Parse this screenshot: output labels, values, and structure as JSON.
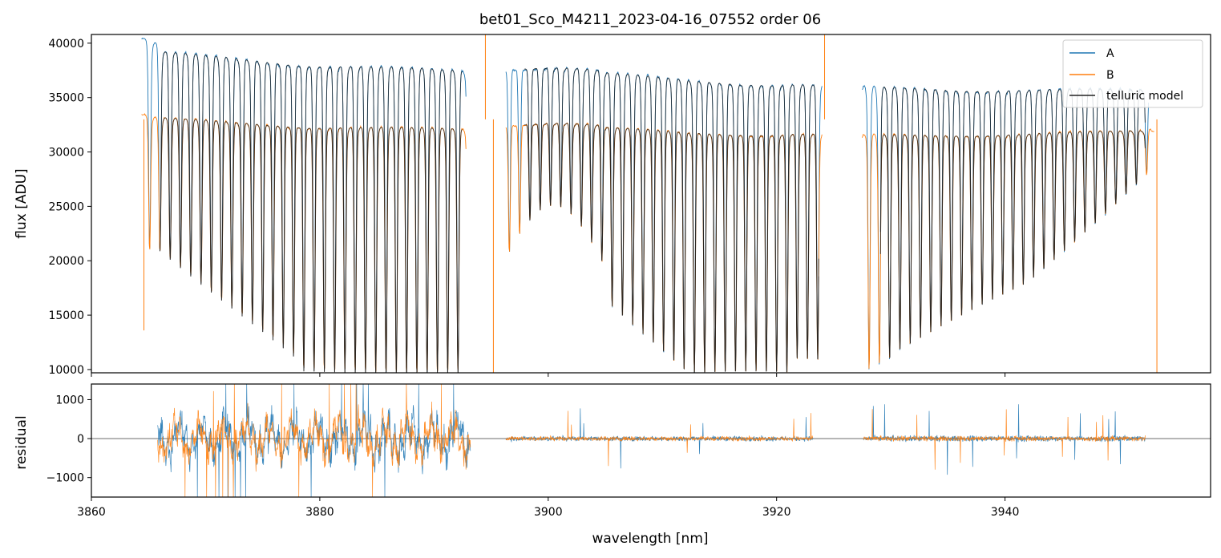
{
  "chart_data": [
    {
      "type": "line",
      "title": "bet01_Sco_M4211_2023-04-16_07552  order 06",
      "xlabel": "",
      "ylabel": "flux [ADU]",
      "xlim": [
        3860,
        3958
      ],
      "ylim": [
        9700,
        40800
      ],
      "yticks": [
        10000,
        15000,
        20000,
        25000,
        30000,
        35000,
        40000
      ],
      "ytick_labels": [
        "10000",
        "15000",
        "20000",
        "25000",
        "30000",
        "35000",
        "40000"
      ],
      "legend_position": "top-right",
      "grid": false,
      "colors": {
        "A": "#1f77b4",
        "B": "#ff7f0e",
        "model": "#222222"
      },
      "series": [
        {
          "name": "A",
          "segments": [
            [
              3864.4,
              3892.8
            ],
            [
              3896.3,
              3924.0
            ],
            [
              3927.5,
              3952.6
            ]
          ]
        },
        {
          "name": "B",
          "segments": [
            [
              3864.4,
              3892.8
            ],
            [
              3896.3,
              3924.0
            ],
            [
              3927.5,
              3953.1
            ]
          ]
        },
        {
          "name": "telluric model"
        }
      ],
      "notes": "Dense periodic telluric absorption comb; continuum A ~40000 declining to ~36000, B ~33500 declining to ~32000."
    },
    {
      "type": "line",
      "xlabel": "wavelength [nm]",
      "ylabel": "residual",
      "xlim": [
        3860,
        3958
      ],
      "ylim": [
        -1500,
        1400
      ],
      "xticks": [
        3860,
        3880,
        3900,
        3920,
        3940
      ],
      "xtick_labels": [
        "3860",
        "3880",
        "3900",
        "3920",
        "3940"
      ],
      "yticks": [
        -1000,
        0,
        1000
      ],
      "ytick_labels": [
        "−1000",
        "0",
        "1000"
      ],
      "zero_line": true,
      "grid": false,
      "series": [
        {
          "segments": [
            [
              3865.8,
              3893.2
            ],
            [
              3896.3,
              3923.2
            ],
            [
              3927.6,
              3952.3
            ]
          ],
          "noise_amplitude": [
            700,
            120,
            140
          ]
        },
        {
          "segments": [
            [
              3865.8,
              3893.2
            ],
            [
              3896.3,
              3923.2
            ],
            [
              3927.6,
              3952.3
            ]
          ],
          "noise_amplitude": [
            650,
            110,
            120
          ]
        }
      ]
    }
  ]
}
